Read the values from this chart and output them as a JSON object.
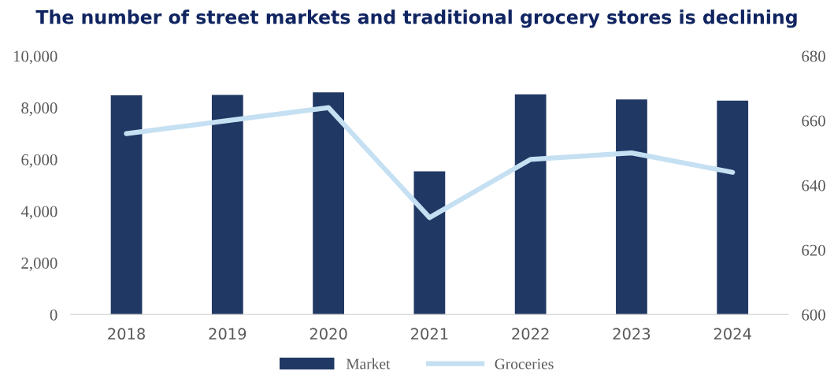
{
  "chart_data": {
    "type": "bar",
    "title": "The number of street markets and traditional grocery stores is declining",
    "categories": [
      "2018",
      "2019",
      "2020",
      "2021",
      "2022",
      "2023",
      "2024"
    ],
    "series": [
      {
        "name": "Market",
        "color": "#203864",
        "values": [
          8480,
          8490,
          8590,
          5540,
          8520,
          8320,
          8270
        ]
      },
      {
        "name": "Groceries",
        "type": "line",
        "axis": "y2",
        "color": "#c5e0f2",
        "values": [
          656,
          660,
          664,
          630,
          648,
          650,
          644
        ]
      }
    ],
    "ylim": [
      0,
      10000
    ],
    "yticks": [
      {
        "value": 0,
        "label": "0"
      },
      {
        "value": 2000,
        "label": "2,000"
      },
      {
        "value": 4000,
        "label": "4,000"
      },
      {
        "value": 6000,
        "label": "6,000"
      },
      {
        "value": 8000,
        "label": "8,000"
      },
      {
        "value": 10000,
        "label": "10,000"
      }
    ],
    "y2lim": [
      600,
      680
    ],
    "y2ticks": [
      600,
      620,
      640,
      660,
      680
    ],
    "grid": false,
    "legend": "bottom"
  }
}
